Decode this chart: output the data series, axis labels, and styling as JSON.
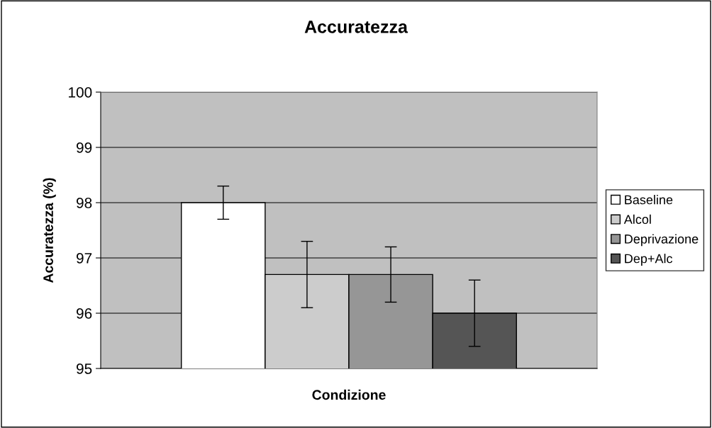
{
  "chart_data": {
    "type": "bar",
    "title": "Accuratezza",
    "xlabel": "Condizione",
    "ylabel": "Accuratezza (%)",
    "categories": [
      null
    ],
    "series": [
      {
        "name": "Baseline",
        "color": "#ffffff",
        "values": [
          98.0
        ],
        "errors": [
          0.3
        ]
      },
      {
        "name": "Alcol",
        "color": "#cccccc",
        "values": [
          96.7
        ],
        "errors": [
          0.6
        ]
      },
      {
        "name": "Deprivazione",
        "color": "#969696",
        "values": [
          96.7
        ],
        "errors": [
          0.5
        ]
      },
      {
        "name": "Dep+Alc",
        "color": "#555555",
        "values": [
          96.0
        ],
        "errors": [
          0.6
        ]
      }
    ],
    "ylim": [
      95,
      100
    ],
    "yticks": [
      95,
      96,
      97,
      98,
      99,
      100
    ],
    "grid": "y",
    "legend": "right"
  }
}
